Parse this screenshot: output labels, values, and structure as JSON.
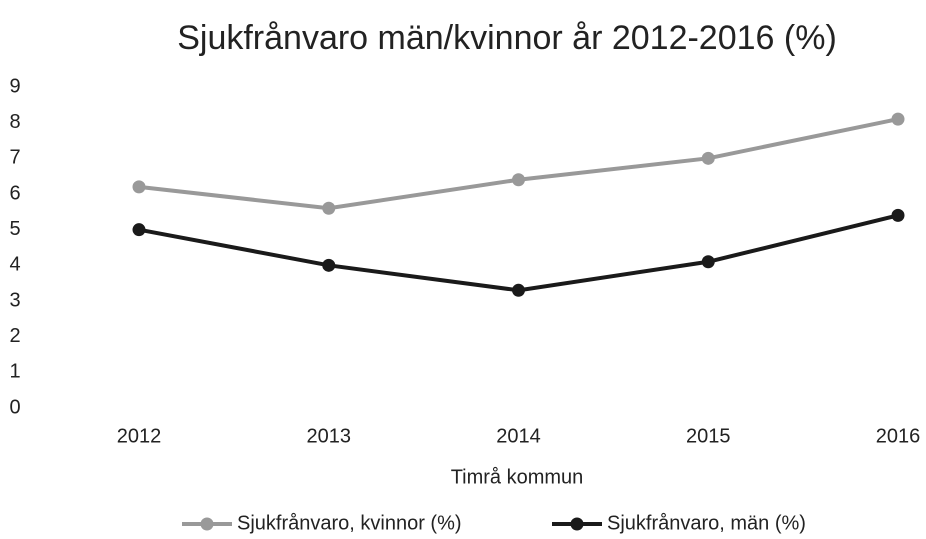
{
  "chart_data": {
    "type": "line",
    "title": "Sjukfrånvaro män/kvinnor år 2012-2016 (%)",
    "x_label": "Timrå kommun",
    "categories": [
      "2012",
      "2013",
      "2014",
      "2015",
      "2016"
    ],
    "series": [
      {
        "name": "Sjukfrånvaro, kvinnor (%)",
        "color": "#999999",
        "values": [
          6.2,
          5.6,
          6.4,
          7.0,
          8.1
        ]
      },
      {
        "name": "Sjukfrånvaro, män (%)",
        "color": "#1a1a1a",
        "values": [
          5.0,
          4.0,
          3.3,
          4.1,
          5.4
        ]
      }
    ],
    "ylim": [
      0,
      9
    ],
    "yticks": [
      0,
      1,
      2,
      3,
      4,
      5,
      6,
      7,
      8,
      9
    ],
    "grid": false,
    "legend": "bottom"
  }
}
